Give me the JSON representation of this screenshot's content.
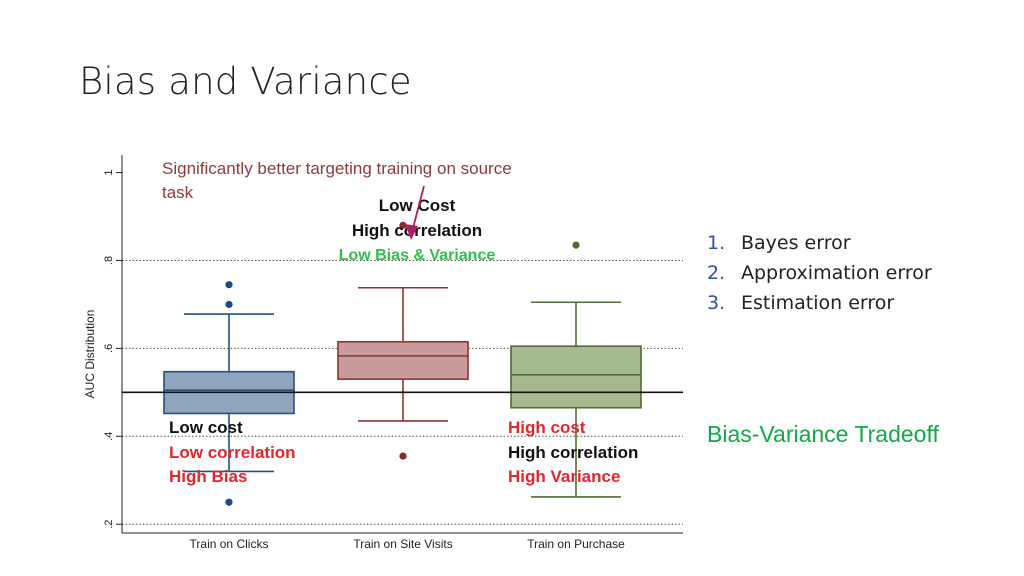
{
  "slide": {
    "title": "Bias and Variance",
    "list": [
      {
        "num": "1.",
        "text": "Bayes error"
      },
      {
        "num": "2.",
        "text": "Approximation error"
      },
      {
        "num": "3.",
        "text": "Estimation error"
      }
    ],
    "tradeoff": "Bias-Variance Tradeoff",
    "colors": {
      "title": "#222222",
      "list_number": "#2e4e9f",
      "tradeoff": "#12a84a"
    }
  },
  "chart_data": {
    "type": "box",
    "ylabel": "AUC Distribution",
    "ylim": [
      0.18,
      1.04
    ],
    "yticks": [
      {
        "value": 0.2,
        "label": ".2"
      },
      {
        "value": 0.4,
        "label": ".4"
      },
      {
        "value": 0.6,
        "label": ".6"
      },
      {
        "value": 0.8,
        "label": ".8"
      },
      {
        "value": 1.0,
        "label": "1"
      }
    ],
    "grid_y": [
      0.2,
      0.4,
      0.6,
      0.8
    ],
    "reference_line": 0.5,
    "categories": [
      "Train on Clicks",
      "Train on Site Visits",
      "Train on Purchase"
    ],
    "boxes": [
      {
        "category": "Train on Clicks",
        "whisker_low": 0.32,
        "q1": 0.452,
        "median": 0.505,
        "q3": 0.547,
        "whisker_high": 0.678,
        "outliers": [
          0.745,
          0.7,
          0.25
        ],
        "fill": "#8ea4bf",
        "stroke": "#284f7e",
        "outlier_color": "#1e4a85"
      },
      {
        "category": "Train on Site Visits",
        "whisker_low": 0.435,
        "q1": 0.53,
        "median": 0.583,
        "q3": 0.615,
        "whisker_high": 0.738,
        "outliers": [
          0.88,
          0.355
        ],
        "fill": "#c99b9b",
        "stroke": "#8d3535",
        "outlier_color": "#8a2c2c"
      },
      {
        "category": "Train on Purchase",
        "whisker_low": 0.262,
        "q1": 0.465,
        "median": 0.54,
        "q3": 0.605,
        "whisker_high": 0.705,
        "outliers": [
          0.835
        ],
        "fill": "#a6b98f",
        "stroke": "#4f6d30",
        "outlier_color": "#4b6a2c"
      }
    ],
    "annotations": {
      "source_note": [
        "Significantly better targeting training on source",
        "task"
      ],
      "site_visits": [
        {
          "text": "Low Cost",
          "color": "#111111"
        },
        {
          "text": "High correlation",
          "color": "#111111"
        },
        {
          "text": "Low Bias & Variance",
          "color": "#2fbf4a"
        }
      ],
      "clicks": [
        {
          "text": "Low cost",
          "color": "#111111"
        },
        {
          "text": "Low correlation",
          "color": "#e8242a"
        },
        {
          "text": "High Bias",
          "color": "#e8242a"
        }
      ],
      "purchase": [
        {
          "text": "High cost",
          "color": "#e8242a"
        },
        {
          "text": "High correlation",
          "color": "#111111"
        },
        {
          "text": "High Variance",
          "color": "#e8242a"
        }
      ],
      "source_note_color": "#8e3a3a",
      "arrow_color": "#b01e60"
    }
  }
}
